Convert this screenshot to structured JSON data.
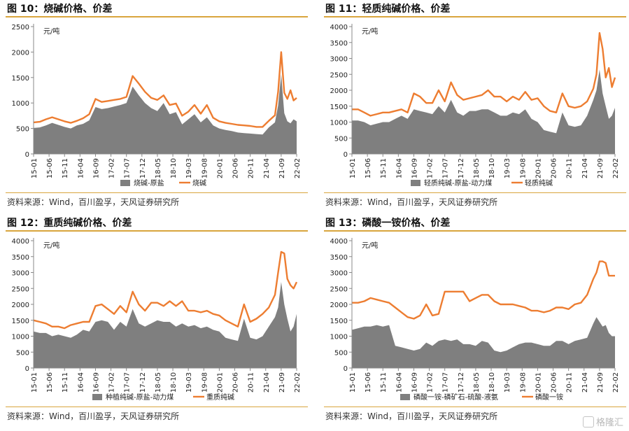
{
  "panels": [
    {
      "title": "图 10：烧碱价格、价差",
      "source": "资料来源：Wind，百川盈孚，天风证券研究所"
    },
    {
      "title": "图 11：轻质纯碱价格、价差",
      "source": "资料来源：Wind，百川盈孚，天风证券研究所"
    },
    {
      "title": "图 12：重质纯碱价格、价差",
      "source": "资料来源：Wind，百川盈孚，天风证券研究所"
    },
    {
      "title": "图 13：磷酸一铵价格、价差",
      "source": "资料来源：Wind，百川盈孚，天风证券研究所"
    }
  ],
  "watermark": "格隆汇",
  "colors": {
    "area": "#7f7f7f",
    "line": "#ed7d31",
    "axis": "#888888"
  },
  "chart_data": [
    {
      "type": "area",
      "title": "图 10：烧碱价格、价差",
      "unit_label": "元/吨",
      "ylim": [
        0,
        2500
      ],
      "yticks": [
        0,
        500,
        1000,
        1500,
        2000,
        2500
      ],
      "xticks": [
        "15-01",
        "15-06",
        "15-11",
        "16-04",
        "16-09",
        "17-02",
        "17-07",
        "17-12",
        "18-05",
        "18-10",
        "19-03",
        "19-08",
        "20-01",
        "20-06",
        "20-11",
        "21-04",
        "21-09",
        "22-02"
      ],
      "x": [
        "15-01",
        "15-03",
        "15-05",
        "15-07",
        "15-09",
        "15-11",
        "16-01",
        "16-03",
        "16-05",
        "16-07",
        "16-09",
        "16-11",
        "17-01",
        "17-03",
        "17-05",
        "17-07",
        "17-09",
        "17-11",
        "18-01",
        "18-03",
        "18-05",
        "18-07",
        "18-09",
        "18-11",
        "19-01",
        "19-03",
        "19-05",
        "19-07",
        "19-09",
        "19-11",
        "20-01",
        "20-03",
        "20-05",
        "20-07",
        "20-09",
        "20-11",
        "21-01",
        "21-03",
        "21-05",
        "21-07",
        "21-08",
        "21-09",
        "21-10",
        "21-11",
        "21-12",
        "22-01",
        "22-02"
      ],
      "legend": [
        "烧碱-原盐",
        "烧碱"
      ],
      "series": [
        {
          "name": "烧碱-原盐",
          "kind": "area",
          "values": [
            510,
            520,
            560,
            610,
            570,
            530,
            500,
            560,
            590,
            660,
            920,
            880,
            900,
            930,
            960,
            1000,
            1320,
            1150,
            1000,
            900,
            840,
            1000,
            780,
            820,
            580,
            680,
            780,
            620,
            720,
            560,
            500,
            470,
            450,
            420,
            410,
            400,
            390,
            380,
            520,
            620,
            950,
            1560,
            800,
            640,
            600,
            680,
            640
          ]
        },
        {
          "name": "烧碱",
          "kind": "line",
          "values": [
            620,
            630,
            680,
            720,
            680,
            640,
            610,
            650,
            700,
            780,
            1080,
            1020,
            1040,
            1060,
            1080,
            1120,
            1530,
            1380,
            1220,
            1100,
            1060,
            1150,
            960,
            990,
            750,
            830,
            960,
            790,
            960,
            710,
            640,
            610,
            590,
            570,
            560,
            550,
            530,
            530,
            650,
            760,
            1220,
            2000,
            1200,
            1080,
            1250,
            1050,
            1100
          ]
        }
      ]
    },
    {
      "type": "area",
      "title": "图 11：轻质纯碱价格、价差",
      "unit_label": "元/吨",
      "ylim": [
        0,
        4000
      ],
      "yticks": [
        0,
        500,
        1000,
        1500,
        2000,
        2500,
        3000,
        3500,
        4000
      ],
      "xticks": [
        "15-01",
        "15-06",
        "15-11",
        "16-04",
        "16-09",
        "17-02",
        "17-07",
        "17-12",
        "18-05",
        "18-10",
        "19-03",
        "19-08",
        "20-01",
        "20-06",
        "20-11",
        "21-04",
        "21-09",
        "22-02"
      ],
      "x": [
        "15-01",
        "15-03",
        "15-05",
        "15-07",
        "15-09",
        "15-11",
        "16-01",
        "16-03",
        "16-05",
        "16-07",
        "16-09",
        "16-11",
        "17-01",
        "17-03",
        "17-05",
        "17-07",
        "17-09",
        "17-11",
        "18-01",
        "18-03",
        "18-05",
        "18-07",
        "18-09",
        "18-11",
        "19-01",
        "19-03",
        "19-05",
        "19-07",
        "19-09",
        "19-11",
        "20-01",
        "20-03",
        "20-05",
        "20-07",
        "20-09",
        "20-11",
        "21-01",
        "21-03",
        "21-05",
        "21-07",
        "21-08",
        "21-09",
        "21-10",
        "21-11",
        "21-12",
        "22-01",
        "22-02"
      ],
      "legend": [
        "轻质纯碱-原盐-动力煤",
        "轻质纯碱"
      ],
      "series": [
        {
          "name": "轻质纯碱-原盐-动力煤",
          "kind": "area",
          "values": [
            1050,
            1050,
            1000,
            900,
            950,
            1000,
            1000,
            1100,
            1200,
            1100,
            1400,
            1350,
            1300,
            1250,
            1500,
            1300,
            1700,
            1300,
            1200,
            1350,
            1350,
            1400,
            1400,
            1300,
            1200,
            1200,
            1300,
            1250,
            1400,
            1100,
            1000,
            750,
            700,
            650,
            1300,
            900,
            850,
            900,
            1200,
            1700,
            2000,
            2650,
            1900,
            1500,
            1100,
            1200,
            1450
          ]
        },
        {
          "name": "轻质纯碱",
          "kind": "line",
          "values": [
            1400,
            1400,
            1300,
            1200,
            1250,
            1300,
            1300,
            1350,
            1400,
            1300,
            1900,
            1800,
            1600,
            1600,
            2000,
            1650,
            2250,
            1850,
            1700,
            1750,
            1800,
            1850,
            2000,
            1800,
            1800,
            1650,
            1800,
            1700,
            1950,
            1700,
            1750,
            1500,
            1350,
            1300,
            1900,
            1500,
            1450,
            1500,
            1650,
            2050,
            2500,
            3800,
            3300,
            2400,
            2700,
            2100,
            2400
          ]
        }
      ]
    },
    {
      "type": "area",
      "title": "图 12：重质纯碱价格、价差",
      "unit_label": "元/吨",
      "ylim": [
        0,
        4000
      ],
      "yticks": [
        0,
        500,
        1000,
        1500,
        2000,
        2500,
        3000,
        3500,
        4000
      ],
      "xticks": [
        "15-01",
        "15-06",
        "15-11",
        "16-04",
        "16-09",
        "17-02",
        "17-07",
        "17-12",
        "18-05",
        "18-10",
        "19-03",
        "19-08",
        "20-01",
        "20-06",
        "20-11",
        "21-04",
        "21-09",
        "22-02"
      ],
      "x": [
        "15-01",
        "15-03",
        "15-05",
        "15-07",
        "15-09",
        "15-11",
        "16-01",
        "16-03",
        "16-05",
        "16-07",
        "16-09",
        "16-11",
        "17-01",
        "17-03",
        "17-05",
        "17-07",
        "17-09",
        "17-11",
        "18-01",
        "18-03",
        "18-05",
        "18-07",
        "18-09",
        "18-11",
        "19-01",
        "19-03",
        "19-05",
        "19-07",
        "19-09",
        "19-11",
        "20-01",
        "20-03",
        "20-05",
        "20-07",
        "20-09",
        "20-11",
        "21-01",
        "21-03",
        "21-05",
        "21-07",
        "21-08",
        "21-09",
        "21-10",
        "21-11",
        "21-12",
        "22-01",
        "22-02"
      ],
      "legend": [
        "种植纯碱-原盐-动力煤",
        "重质纯碱"
      ],
      "series": [
        {
          "name": "种植纯碱-原盐-动力煤",
          "kind": "area",
          "values": [
            1150,
            1100,
            1100,
            1000,
            1050,
            1000,
            950,
            1050,
            1200,
            1150,
            1450,
            1500,
            1450,
            1200,
            1450,
            1300,
            1850,
            1400,
            1300,
            1400,
            1500,
            1450,
            1450,
            1300,
            1400,
            1300,
            1350,
            1250,
            1300,
            1200,
            1150,
            950,
            900,
            850,
            1550,
            950,
            900,
            1000,
            1300,
            1600,
            1900,
            2700,
            2000,
            1550,
            1150,
            1300,
            1700
          ]
        },
        {
          "name": "重质纯碱",
          "kind": "line",
          "values": [
            1500,
            1450,
            1400,
            1300,
            1300,
            1250,
            1350,
            1400,
            1450,
            1450,
            1950,
            2000,
            1850,
            1700,
            1950,
            1750,
            2400,
            2000,
            1800,
            2050,
            2050,
            1950,
            2100,
            1950,
            2100,
            1800,
            1800,
            1750,
            1800,
            1700,
            1650,
            1500,
            1400,
            1300,
            2000,
            1450,
            1550,
            1700,
            1900,
            2300,
            3000,
            3650,
            3600,
            2800,
            2600,
            2500,
            2700
          ]
        }
      ]
    },
    {
      "type": "area",
      "title": "图 13：磷酸一铵价格、价差",
      "unit_label": "元/吨",
      "ylim": [
        0,
        4000
      ],
      "yticks": [
        0,
        500,
        1000,
        1500,
        2000,
        2500,
        3000,
        3500,
        4000
      ],
      "xticks": [
        "15-01",
        "15-06",
        "15-11",
        "16-04",
        "16-09",
        "17-02",
        "17-07",
        "17-12",
        "18-05",
        "18-10",
        "19-03",
        "19-08",
        "20-01",
        "20-06",
        "20-11",
        "21-04",
        "21-09",
        "22-02"
      ],
      "x": [
        "15-01",
        "15-03",
        "15-05",
        "15-07",
        "15-09",
        "15-11",
        "16-01",
        "16-03",
        "16-05",
        "16-07",
        "16-09",
        "16-11",
        "17-01",
        "17-03",
        "17-05",
        "17-07",
        "17-09",
        "17-11",
        "18-01",
        "18-03",
        "18-05",
        "18-07",
        "18-09",
        "18-11",
        "19-01",
        "19-03",
        "19-05",
        "19-07",
        "19-09",
        "19-11",
        "20-01",
        "20-03",
        "20-05",
        "20-07",
        "20-09",
        "20-11",
        "21-01",
        "21-03",
        "21-05",
        "21-07",
        "21-08",
        "21-09",
        "21-10",
        "21-11",
        "21-12",
        "22-01",
        "22-02"
      ],
      "legend": [
        "磷酸一铵-磷矿石-硫酸-液氨",
        "磷酸一铵"
      ],
      "series": [
        {
          "name": "磷酸一铵-磷矿石-硫酸-液氨",
          "kind": "area",
          "values": [
            1200,
            1250,
            1300,
            1300,
            1350,
            1300,
            1350,
            700,
            650,
            600,
            550,
            600,
            800,
            700,
            850,
            900,
            850,
            900,
            750,
            750,
            700,
            850,
            800,
            550,
            500,
            550,
            650,
            750,
            800,
            800,
            750,
            700,
            700,
            850,
            850,
            750,
            850,
            900,
            950,
            1400,
            1600,
            1450,
            1300,
            1350,
            1100,
            1000,
            1000
          ]
        },
        {
          "name": "磷酸一铵",
          "kind": "line",
          "values": [
            2050,
            2050,
            2100,
            2200,
            2150,
            2100,
            2050,
            1900,
            1750,
            1600,
            1550,
            1650,
            2000,
            1650,
            1700,
            2400,
            2400,
            2400,
            2400,
            2100,
            2200,
            2300,
            2300,
            2100,
            2000,
            2000,
            2000,
            1950,
            1900,
            1800,
            1800,
            1750,
            1800,
            1900,
            1900,
            1850,
            2000,
            2050,
            2300,
            2800,
            3000,
            3350,
            3350,
            3300,
            2900,
            2900,
            2900
          ]
        }
      ]
    }
  ]
}
